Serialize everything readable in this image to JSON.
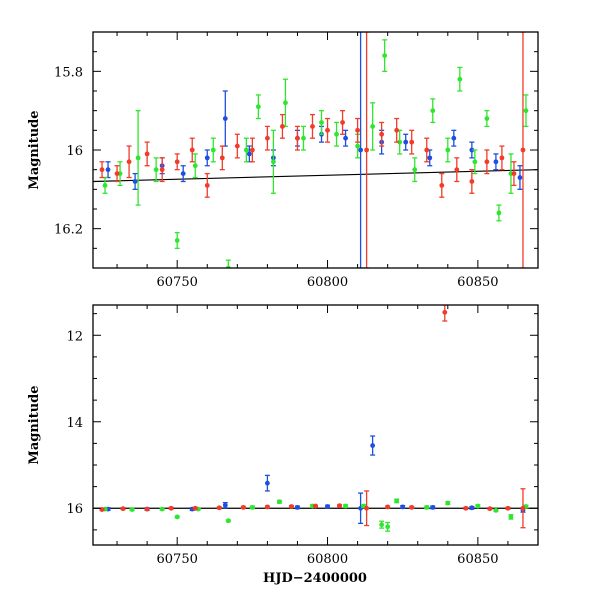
{
  "colors": {
    "blue": "#1f4fe0",
    "green": "#2fe62f",
    "red": "#f03c28",
    "axis": "#000000",
    "fit": "#000000"
  },
  "chart_data": [
    {
      "type": "scatter",
      "title": "",
      "xlabel": "",
      "ylabel": "Magnitude",
      "xlim": [
        60722,
        60870
      ],
      "ylim": [
        16.3,
        15.7
      ],
      "y_inverted": true,
      "xticks": [
        "60750",
        "60800",
        "60850"
      ],
      "yticks": [
        "15.8",
        "16",
        "16.2"
      ],
      "fit_line": {
        "x": [
          60722,
          60870
        ],
        "y": [
          16.08,
          16.05
        ]
      },
      "series": [
        {
          "color": "blue",
          "points": [
            [
              60727,
              16.05,
              0.02
            ],
            [
              60736,
              16.08,
              0.02
            ],
            [
              60745,
              16.04,
              0.02
            ],
            [
              60752,
              16.06,
              0.02
            ],
            [
              60760,
              16.02,
              0.02
            ],
            [
              60766,
              15.92,
              0.07
            ],
            [
              60774,
              16.01,
              0.02
            ],
            [
              60782,
              16.02,
              0.02
            ],
            [
              60790,
              15.97,
              0.02
            ],
            [
              60798,
              15.96,
              0.02
            ],
            [
              60806,
              15.97,
              0.02
            ],
            [
              60811,
              16.0,
              0.6
            ],
            [
              60818,
              15.98,
              0.03
            ],
            [
              60826,
              15.98,
              0.02
            ],
            [
              60834,
              16.02,
              0.02
            ],
            [
              60842,
              15.97,
              0.02
            ],
            [
              60848,
              16.0,
              0.02
            ],
            [
              60856,
              16.03,
              0.02
            ],
            [
              60864,
              16.07,
              0.03
            ]
          ]
        },
        {
          "color": "green",
          "points": [
            [
              60726,
              16.09,
              0.02
            ],
            [
              60731,
              16.06,
              0.03
            ],
            [
              60737,
              16.02,
              0.12
            ],
            [
              60743,
              16.05,
              0.03
            ],
            [
              60750,
              16.23,
              0.02
            ],
            [
              60756,
              16.04,
              0.03
            ],
            [
              60762,
              16.0,
              0.03
            ],
            [
              60767,
              16.3,
              0.02
            ],
            [
              60773,
              16.0,
              0.03
            ],
            [
              60777,
              15.89,
              0.03
            ],
            [
              60782,
              16.03,
              0.08
            ],
            [
              60786,
              15.88,
              0.06
            ],
            [
              60792,
              15.97,
              0.03
            ],
            [
              60798,
              15.93,
              0.03
            ],
            [
              60803,
              15.96,
              0.03
            ],
            [
              60810,
              15.99,
              0.03
            ],
            [
              60815,
              15.94,
              0.06
            ],
            [
              60819,
              15.76,
              0.04
            ],
            [
              60824,
              15.98,
              0.03
            ],
            [
              60829,
              16.05,
              0.03
            ],
            [
              60835,
              15.9,
              0.03
            ],
            [
              60840,
              16.0,
              0.03
            ],
            [
              60844,
              15.82,
              0.03
            ],
            [
              60849,
              16.03,
              0.03
            ],
            [
              60853,
              15.92,
              0.02
            ],
            [
              60857,
              16.16,
              0.02
            ],
            [
              60861,
              16.06,
              0.05
            ],
            [
              60866,
              15.9,
              0.04
            ]
          ]
        },
        {
          "color": "red",
          "points": [
            [
              60725,
              16.05,
              0.02
            ],
            [
              60730,
              16.06,
              0.02
            ],
            [
              60734,
              16.03,
              0.04
            ],
            [
              60740,
              16.01,
              0.03
            ],
            [
              60745,
              16.05,
              0.03
            ],
            [
              60750,
              16.03,
              0.02
            ],
            [
              60755,
              16.0,
              0.03
            ],
            [
              60760,
              16.09,
              0.03
            ],
            [
              60765,
              16.02,
              0.03
            ],
            [
              60770,
              15.99,
              0.03
            ],
            [
              60775,
              16.0,
              0.03
            ],
            [
              60780,
              15.97,
              0.03
            ],
            [
              60785,
              15.94,
              0.03
            ],
            [
              60790,
              15.97,
              0.03
            ],
            [
              60795,
              15.94,
              0.03
            ],
            [
              60800,
              15.95,
              0.03
            ],
            [
              60805,
              15.93,
              0.03
            ],
            [
              60810,
              15.95,
              0.03
            ],
            [
              60813,
              16.0,
              0.6
            ],
            [
              60818,
              15.96,
              0.03
            ],
            [
              60823,
              15.95,
              0.03
            ],
            [
              60828,
              15.98,
              0.03
            ],
            [
              60833,
              16.0,
              0.03
            ],
            [
              60838,
              16.09,
              0.03
            ],
            [
              60843,
              16.05,
              0.03
            ],
            [
              60848,
              16.08,
              0.03
            ],
            [
              60853,
              16.03,
              0.03
            ],
            [
              60858,
              16.02,
              0.03
            ],
            [
              60862,
              16.06,
              0.03
            ],
            [
              60865,
              16.0,
              0.6
            ]
          ]
        }
      ]
    },
    {
      "type": "scatter",
      "title": "",
      "xlabel": "HJD−2400000",
      "ylabel": "Magnitude",
      "xlim": [
        60722,
        60870
      ],
      "ylim": [
        16.85,
        11.3
      ],
      "y_inverted": true,
      "xticks": [
        "60750",
        "60800",
        "60850"
      ],
      "yticks": [
        "12",
        "14",
        "16"
      ],
      "fit_line": {
        "x": [
          60722,
          60870
        ],
        "y": [
          16.0,
          16.0
        ]
      },
      "series": [
        {
          "color": "blue",
          "points": [
            [
              60727,
              16.02,
              0.03
            ],
            [
              60740,
              16.02,
              0.03
            ],
            [
              60755,
              16.02,
              0.03
            ],
            [
              60766,
              15.93,
              0.06
            ],
            [
              60780,
              15.42,
              0.18
            ],
            [
              60790,
              15.98,
              0.03
            ],
            [
              60800,
              15.96,
              0.03
            ],
            [
              60811,
              16.0,
              0.35
            ],
            [
              60815,
              14.55,
              0.22
            ],
            [
              60825,
              15.97,
              0.03
            ],
            [
              60835,
              15.98,
              0.03
            ],
            [
              60848,
              15.99,
              0.03
            ],
            [
              60865,
              16.04,
              0.05
            ]
          ]
        },
        {
          "color": "green",
          "points": [
            [
              60726,
              16.02,
              0.02
            ],
            [
              60735,
              16.03,
              0.02
            ],
            [
              60745,
              16.02,
              0.02
            ],
            [
              60750,
              16.2,
              0.02
            ],
            [
              60757,
              16.02,
              0.02
            ],
            [
              60767,
              16.29,
              0.02
            ],
            [
              60775,
              15.98,
              0.03
            ],
            [
              60784,
              15.85,
              0.03
            ],
            [
              60795,
              15.95,
              0.03
            ],
            [
              60806,
              15.95,
              0.03
            ],
            [
              60812,
              15.95,
              0.03
            ],
            [
              60818,
              16.38,
              0.08
            ],
            [
              60820,
              16.43,
              0.1
            ],
            [
              60823,
              15.83,
              0.04
            ],
            [
              60833,
              15.98,
              0.03
            ],
            [
              60840,
              15.88,
              0.03
            ],
            [
              60850,
              15.95,
              0.03
            ],
            [
              60856,
              16.05,
              0.02
            ],
            [
              60861,
              16.2,
              0.05
            ],
            [
              60866,
              15.96,
              0.03
            ]
          ]
        },
        {
          "color": "red",
          "points": [
            [
              60725,
              16.03,
              0.02
            ],
            [
              60732,
              16.01,
              0.02
            ],
            [
              60740,
              16.02,
              0.02
            ],
            [
              60748,
              16.0,
              0.02
            ],
            [
              60756,
              16.0,
              0.02
            ],
            [
              60764,
              15.99,
              0.02
            ],
            [
              60772,
              15.98,
              0.02
            ],
            [
              60780,
              15.97,
              0.02
            ],
            [
              60788,
              15.96,
              0.02
            ],
            [
              60796,
              15.95,
              0.02
            ],
            [
              60804,
              15.94,
              0.02
            ],
            [
              60813,
              16.0,
              0.4
            ],
            [
              60820,
              15.97,
              0.02
            ],
            [
              60828,
              15.98,
              0.02
            ],
            [
              60839,
              11.47,
              0.2
            ],
            [
              60846,
              16.0,
              0.02
            ],
            [
              60854,
              16.01,
              0.02
            ],
            [
              60860,
              16.0,
              0.02
            ],
            [
              60865,
              16.0,
              0.45
            ]
          ]
        }
      ]
    }
  ]
}
